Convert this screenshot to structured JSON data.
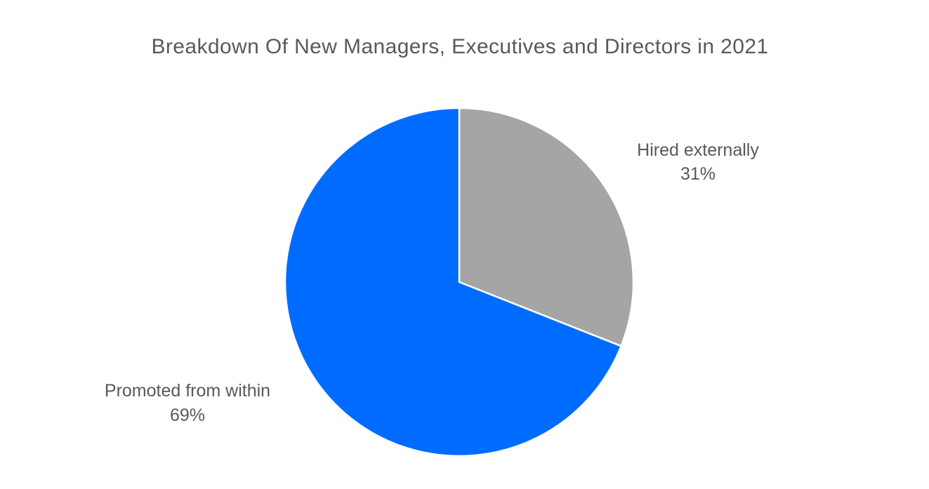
{
  "chart_data": {
    "type": "pie",
    "title": "Breakdown Of New Managers, Executives and Directors in 2021",
    "slices": [
      {
        "label": "Hired externally",
        "value": 31,
        "value_label": "31%",
        "color": "#a5a5a5"
      },
      {
        "label": "Promoted from within",
        "value": 69,
        "value_label": "69%",
        "color": "#006cff"
      }
    ],
    "start_angle": "12 o'clock",
    "direction": "clockwise",
    "legend": "none",
    "slice_border_color": "#ffffff"
  }
}
